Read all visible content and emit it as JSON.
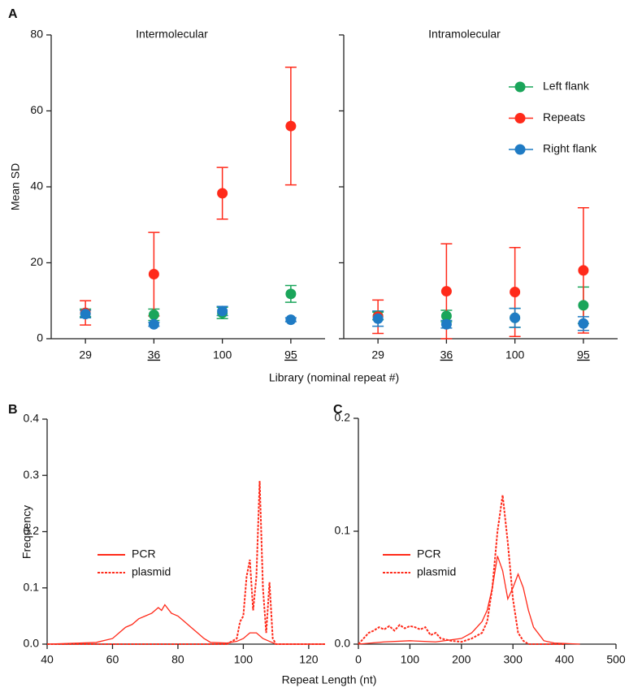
{
  "chart_data": [
    {
      "type": "errorbar",
      "panel": "A",
      "title": "Intermolecular",
      "ylabel": "Mean SD",
      "xlabel": "Library (nominal repeat #)",
      "categories": [
        "29",
        "36",
        "100",
        "95"
      ],
      "category_underline": [
        false,
        true,
        false,
        true
      ],
      "ylim": [
        0,
        80
      ],
      "yticks": [
        0,
        20,
        40,
        60,
        80
      ],
      "series": [
        {
          "name": "Left flank",
          "color": "#1aa55a",
          "values": [
            6.8,
            6.3,
            6.8,
            11.8
          ],
          "errors": [
            1,
            1.5,
            1.5,
            2.2
          ]
        },
        {
          "name": "Repeats",
          "color": "#ff2a1a",
          "values": [
            6.8,
            17,
            38.3,
            56
          ],
          "errors": [
            3.2,
            11,
            6.8,
            15.5
          ]
        },
        {
          "name": "Right flank",
          "color": "#1f7bc4",
          "values": [
            6.5,
            3.8,
            7.3,
            5
          ],
          "errors": [
            1,
            0.5,
            1.2,
            0.5
          ]
        }
      ]
    },
    {
      "type": "errorbar",
      "title": "Intramolecular",
      "categories": [
        "29",
        "36",
        "100",
        "95"
      ],
      "category_underline": [
        false,
        true,
        false,
        true
      ],
      "ylim": [
        0,
        80
      ],
      "legend": "upper right",
      "series": [
        {
          "name": "Left flank",
          "color": "#1aa55a",
          "values": [
            6,
            6,
            5.5,
            8.8
          ],
          "errors": [
            1,
            1.5,
            2.5,
            4.8
          ]
        },
        {
          "name": "Repeats",
          "color": "#ff2a1a",
          "values": [
            5.8,
            12.5,
            12.3,
            18
          ],
          "errors": [
            4.4,
            12.5,
            11.7,
            16.5
          ]
        },
        {
          "name": "Right flank",
          "color": "#1f7bc4",
          "values": [
            5.3,
            3.8,
            5.5,
            4
          ],
          "errors": [
            2,
            1,
            2.5,
            1.8
          ]
        }
      ]
    },
    {
      "type": "line",
      "panel": "B",
      "ylabel": "Frequency",
      "xlabel": "Repeat Length (nt)",
      "xlim": [
        40,
        125
      ],
      "xticks": [
        40,
        60,
        80,
        100,
        120
      ],
      "ylim": [
        0,
        0.4
      ],
      "yticks": [
        {
          "value": 0,
          "label": "0.0"
        },
        0.1,
        0.2,
        0.3,
        0.4
      ],
      "legend": "upper left",
      "series": [
        {
          "name": "PCR",
          "color": "#ff2a1a",
          "dashed": false,
          "x": [
            40,
            50,
            55,
            60,
            62,
            64,
            66,
            68,
            70,
            72,
            74,
            75,
            76,
            78,
            80,
            82,
            84,
            86,
            88,
            90,
            95,
            98,
            100,
            102,
            104,
            106,
            108,
            110,
            115,
            125
          ],
          "values": [
            0,
            0.002,
            0.003,
            0.01,
            0.02,
            0.03,
            0.035,
            0.045,
            0.05,
            0.055,
            0.065,
            0.06,
            0.07,
            0.055,
            0.05,
            0.04,
            0.03,
            0.02,
            0.01,
            0.003,
            0.002,
            0.005,
            0.01,
            0.02,
            0.02,
            0.01,
            0.005,
            0,
            0,
            0
          ]
        },
        {
          "name": "plasmid",
          "color": "#ff2a1a",
          "dashed": true,
          "x": [
            40,
            95,
            98,
            99,
            100,
            101,
            102,
            103,
            104,
            105,
            106,
            107,
            108,
            109,
            110,
            125
          ],
          "values": [
            0,
            0,
            0.01,
            0.04,
            0.05,
            0.12,
            0.15,
            0.06,
            0.12,
            0.29,
            0.1,
            0.02,
            0.11,
            0.01,
            0,
            0
          ]
        }
      ]
    },
    {
      "type": "line",
      "panel": "C",
      "xlim": [
        0,
        500
      ],
      "xticks": [
        0,
        100,
        200,
        300,
        400,
        500
      ],
      "ylim": [
        0,
        0.2
      ],
      "yticks": [
        {
          "value": 0,
          "label": "0.0"
        },
        0.1,
        0.2
      ],
      "legend": "upper left",
      "series": [
        {
          "name": "PCR",
          "color": "#ff2a1a",
          "dashed": false,
          "x": [
            0,
            50,
            100,
            150,
            200,
            220,
            240,
            250,
            260,
            270,
            280,
            290,
            300,
            310,
            320,
            330,
            340,
            360,
            380,
            430
          ],
          "values": [
            0,
            0.002,
            0.003,
            0.002,
            0.005,
            0.01,
            0.02,
            0.03,
            0.05,
            0.078,
            0.065,
            0.04,
            0.05,
            0.062,
            0.05,
            0.03,
            0.015,
            0.003,
            0.001,
            0
          ]
        },
        {
          "name": "plasmid",
          "color": "#ff2a1a",
          "dashed": true,
          "x": [
            0,
            10,
            20,
            30,
            40,
            50,
            60,
            70,
            80,
            90,
            100,
            110,
            120,
            130,
            140,
            150,
            160,
            180,
            200,
            220,
            240,
            250,
            260,
            270,
            280,
            290,
            300,
            310,
            320,
            330,
            350,
            400
          ],
          "values": [
            0,
            0.005,
            0.01,
            0.012,
            0.015,
            0.013,
            0.016,
            0.012,
            0.017,
            0.014,
            0.016,
            0.015,
            0.013,
            0.015,
            0.008,
            0.01,
            0.005,
            0.003,
            0.002,
            0.005,
            0.01,
            0.02,
            0.05,
            0.1,
            0.132,
            0.09,
            0.04,
            0.01,
            0.003,
            0,
            0,
            0
          ]
        }
      ]
    }
  ]
}
